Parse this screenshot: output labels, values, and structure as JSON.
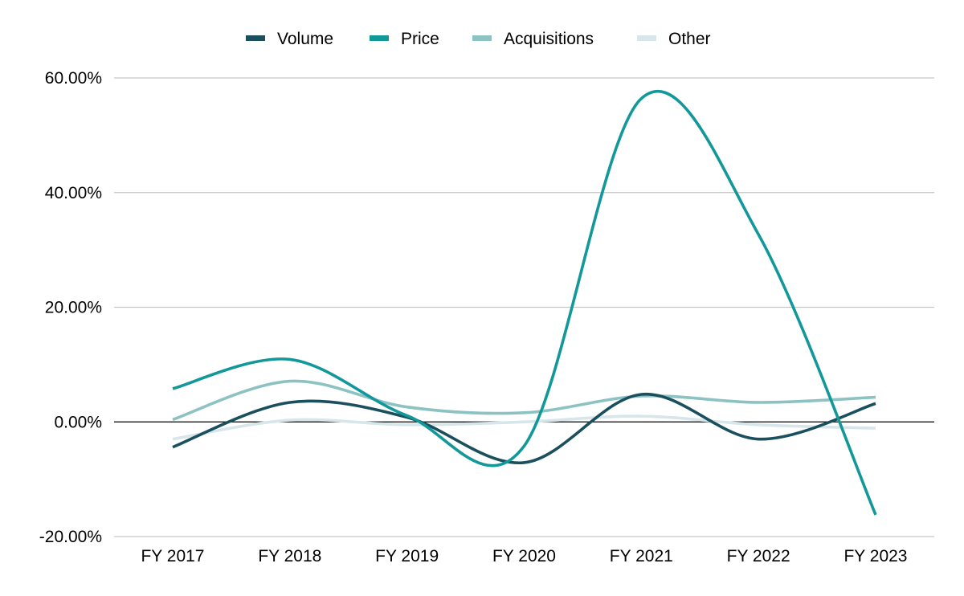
{
  "chart_data": {
    "type": "line",
    "smooth": true,
    "categories": [
      "FY 2017",
      "FY 2018",
      "FY 2019",
      "FY 2020",
      "FY 2021",
      "FY 2022",
      "FY 2023"
    ],
    "series": [
      {
        "name": "Volume",
        "color": "#1a4f5e",
        "values": [
          -4.4,
          3.4,
          0.8,
          -7.1,
          4.8,
          -3.0,
          3.2
        ]
      },
      {
        "name": "Price",
        "color": "#13989a",
        "values": [
          5.8,
          10.9,
          1.1,
          -4.2,
          56.4,
          32.7,
          -16.2
        ]
      },
      {
        "name": "Acquisitions",
        "color": "#8cc2c2",
        "values": [
          0.4,
          7.1,
          2.6,
          1.6,
          4.5,
          3.4,
          4.3
        ]
      },
      {
        "name": "Other",
        "color": "#d7e6ea",
        "values": [
          -3.0,
          0.3,
          -0.5,
          0.0,
          1.0,
          -0.5,
          -1.1
        ]
      }
    ],
    "y_ticks": [
      "60.00%",
      "40.00%",
      "20.00%",
      "0.00%",
      "-20.00%"
    ],
    "y_tick_values": [
      60,
      40,
      20,
      0,
      -20
    ],
    "ylim": [
      -20,
      60
    ],
    "grid": true,
    "legend_position": "top-center",
    "title": "",
    "xlabel": "",
    "ylabel": ""
  }
}
